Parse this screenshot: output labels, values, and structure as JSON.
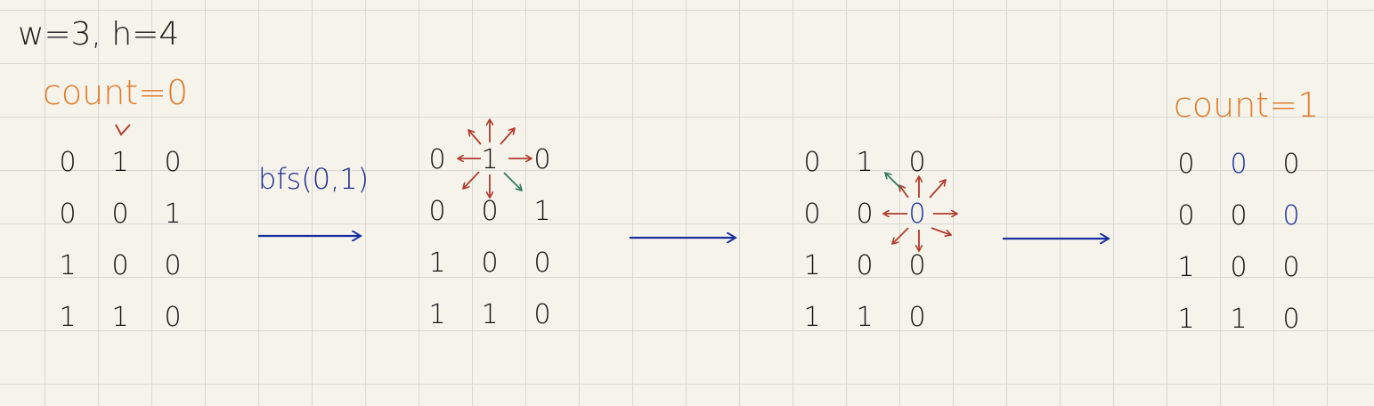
{
  "params_label": "w=3, h=4",
  "count_before": "count=0",
  "count_after": "count=1",
  "operation_label": "bfs(0,1)",
  "colors": {
    "ink": "#111111",
    "orange": "#e07b2e",
    "blue": "#1b2fa0",
    "red": "#b33a2e",
    "green": "#2f7a55"
  },
  "grids": [
    {
      "rows": [
        [
          "0",
          "1",
          "0"
        ],
        [
          "0",
          "0",
          "1"
        ],
        [
          "1",
          "0",
          "0"
        ],
        [
          "1",
          "1",
          "0"
        ]
      ],
      "highlight": []
    },
    {
      "rows": [
        [
          "0",
          "1",
          "0"
        ],
        [
          "0",
          "0",
          "1"
        ],
        [
          "1",
          "0",
          "0"
        ],
        [
          "1",
          "1",
          "0"
        ]
      ],
      "highlight": []
    },
    {
      "rows": [
        [
          "0",
          "1",
          "0"
        ],
        [
          "0",
          "0",
          "0"
        ],
        [
          "1",
          "0",
          "0"
        ],
        [
          "1",
          "1",
          "0"
        ]
      ],
      "highlight": [
        [
          1,
          2
        ]
      ]
    },
    {
      "rows": [
        [
          "0",
          "0",
          "0"
        ],
        [
          "0",
          "0",
          "0"
        ],
        [
          "1",
          "0",
          "0"
        ],
        [
          "1",
          "1",
          "0"
        ]
      ],
      "highlight": [
        [
          0,
          1
        ],
        [
          1,
          2
        ]
      ]
    }
  ]
}
